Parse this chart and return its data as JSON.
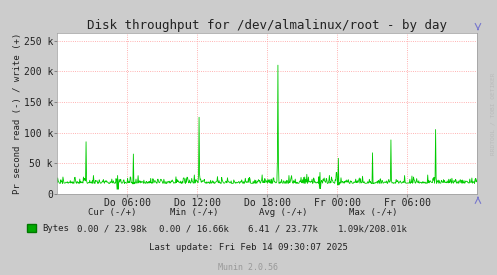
{
  "title": "Disk throughput for /dev/almalinux/root - by day",
  "ylabel": "Pr second read (-) / write (+)",
  "bg_color": "#CCCCCC",
  "plot_bg_color": "#FFFFFF",
  "ylim": [
    0,
    262500
  ],
  "yticks": [
    0,
    50000,
    100000,
    150000,
    200000,
    250000
  ],
  "ytick_labels": [
    "0",
    "50 k",
    "100 k",
    "150 k",
    "200 k",
    "250 k"
  ],
  "xtick_labels": [
    "Do 06:00",
    "Do 12:00",
    "Do 18:00",
    "Fr 00:00",
    "Fr 06:00"
  ],
  "last_update": "Last update: Fri Feb 14 09:30:07 2025",
  "munin_version": "Munin 2.0.56",
  "rrdtool_label": "RRDTOOL / TOBI OETIKER",
  "num_points": 800,
  "line_color": "#00CC00",
  "grid_color_h": "#FF8080",
  "grid_color_v": "#FF8080",
  "stats_col1_header": "Cur (-/+)",
  "stats_col2_header": "Min (-/+)",
  "stats_col3_header": "Avg (-/+)",
  "stats_col4_header": "Max (-/+)",
  "stats_col1_val": "0.00 / 23.98k",
  "stats_col2_val": "0.00 / 16.66k",
  "stats_col3_val": "6.41 / 23.77k",
  "stats_col4_val": "1.09k/208.01k",
  "legend_label": "Bytes"
}
